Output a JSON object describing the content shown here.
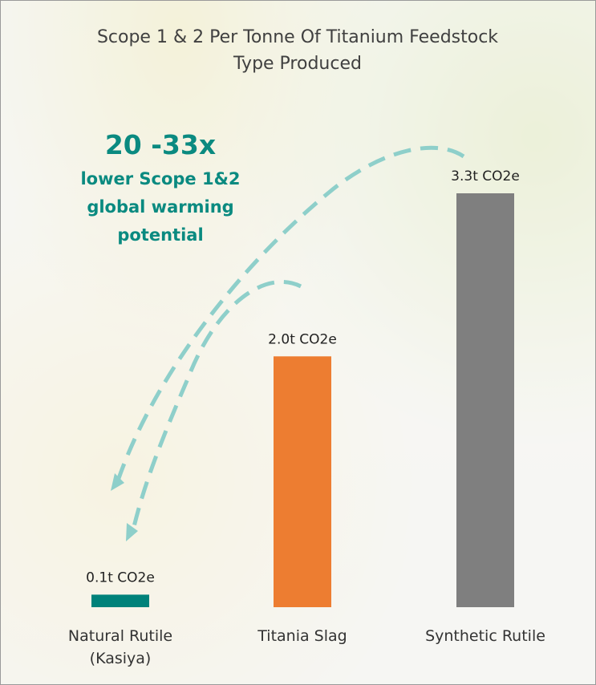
{
  "chart_data": {
    "type": "bar",
    "title": "Scope 1 & 2 Per Tonne Of Titanium Feedstock Type Produced",
    "annotations": [
      "20 -33x",
      "lower Scope 1&2 global warming potential"
    ],
    "categories": [
      "Natural Rutile (Kasiya)",
      "Titania Slag",
      "Synthetic Rutile"
    ],
    "values": [
      0.1,
      2.0,
      3.3
    ],
    "value_labels": [
      "0.1t CO2e",
      "2.0t CO2e",
      "3.3t CO2e"
    ],
    "colors": [
      "#00827a",
      "#ed7d31",
      "#7f7f7f"
    ],
    "ylim": [
      0,
      3.3
    ]
  }
}
